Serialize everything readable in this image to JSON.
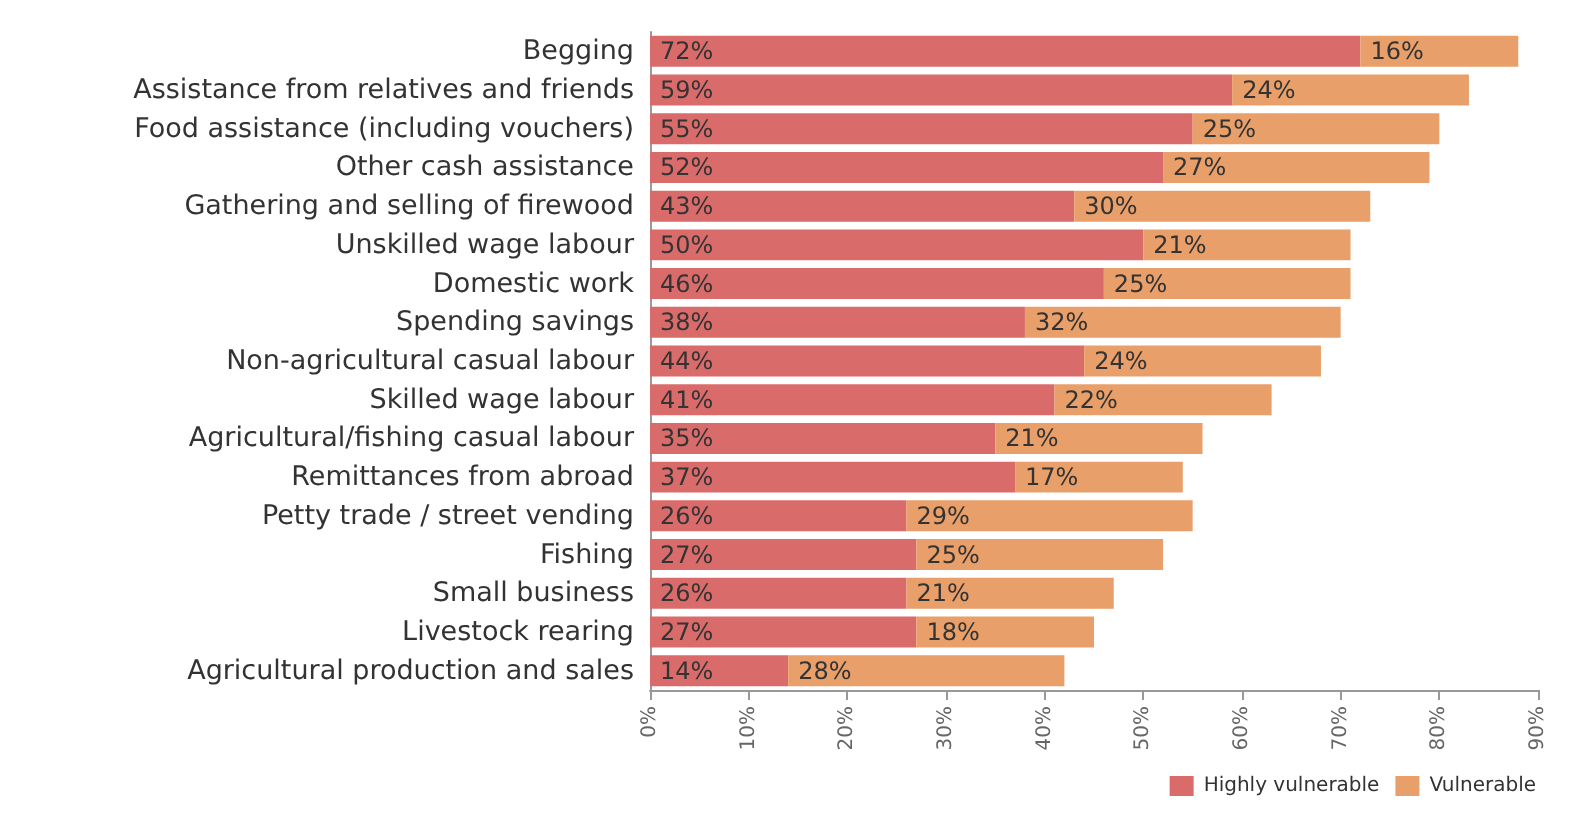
{
  "chart_data": {
    "type": "bar",
    "orientation": "horizontal",
    "stacked": true,
    "categories": [
      "Begging",
      "Assistance from relatives and friends",
      "Food assistance (including vouchers)",
      "Other cash assistance",
      "Gathering and selling of firewood",
      "Unskilled wage labour",
      "Domestic work",
      "Spending savings",
      "Non-agricultural casual labour",
      "Skilled wage labour",
      "Agricultural/fishing casual labour",
      "Remittances from abroad",
      "Petty trade / street vending",
      "Fishing",
      "Small business",
      "Livestock rearing",
      "Agricultural production and sales"
    ],
    "series": [
      {
        "name": "Highly vulnerable",
        "color": "#d96b6b",
        "values": [
          72,
          59,
          55,
          52,
          43,
          50,
          46,
          38,
          44,
          41,
          35,
          37,
          26,
          27,
          26,
          27,
          14
        ],
        "value_labels": [
          "72%",
          "59%",
          "55%",
          "52%",
          "43%",
          "50%",
          "46%",
          "38%",
          "44%",
          "41%",
          "35%",
          "37%",
          "26%",
          "27%",
          "26%",
          "27%",
          "14%"
        ]
      },
      {
        "name": "Vulnerable",
        "color": "#e99f69",
        "values": [
          16,
          24,
          25,
          27,
          30,
          21,
          25,
          32,
          24,
          22,
          21,
          17,
          29,
          25,
          21,
          18,
          28
        ],
        "value_labels": [
          "16%",
          "24%",
          "25%",
          "27%",
          "30%",
          "21%",
          "25%",
          "32%",
          "24%",
          "22%",
          "21%",
          "17%",
          "29%",
          "25%",
          "21%",
          "18%",
          "28%"
        ]
      }
    ],
    "xlim": [
      0,
      90
    ],
    "xticks": [
      {
        "value": 0,
        "label": "0%"
      },
      {
        "value": 10,
        "label": "10%"
      },
      {
        "value": 20,
        "label": "20%"
      },
      {
        "value": 30,
        "label": "30%"
      },
      {
        "value": 40,
        "label": "40%"
      },
      {
        "value": 50,
        "label": "50%"
      },
      {
        "value": 60,
        "label": "60%"
      },
      {
        "value": 70,
        "label": "70%"
      },
      {
        "value": 80,
        "label": "80%"
      },
      {
        "value": 90,
        "label": "90%"
      }
    ],
    "grid": false,
    "legend": "bottom right"
  }
}
